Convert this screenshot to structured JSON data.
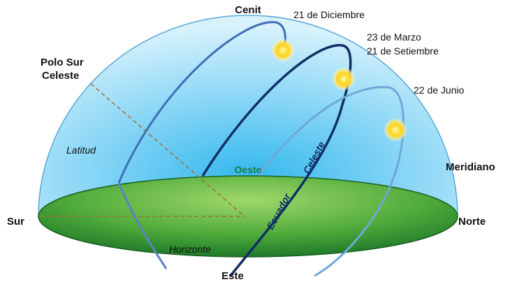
{
  "labels": {
    "zenith": "Cenit",
    "december": "21 de Diciembre",
    "march": "23 de Marzo",
    "september": "21 de Setiembre",
    "june": "22 de Junio",
    "south_pole": [
      "Polo Sur",
      "Celeste"
    ],
    "latitude": "Latitud",
    "west": "Oeste",
    "meridian": "Meridiano",
    "south": "Sur",
    "north": "Norte",
    "horizon": "Horizonte",
    "east": "Este",
    "equator": "Ecuador",
    "celestial": "Celeste"
  }
}
